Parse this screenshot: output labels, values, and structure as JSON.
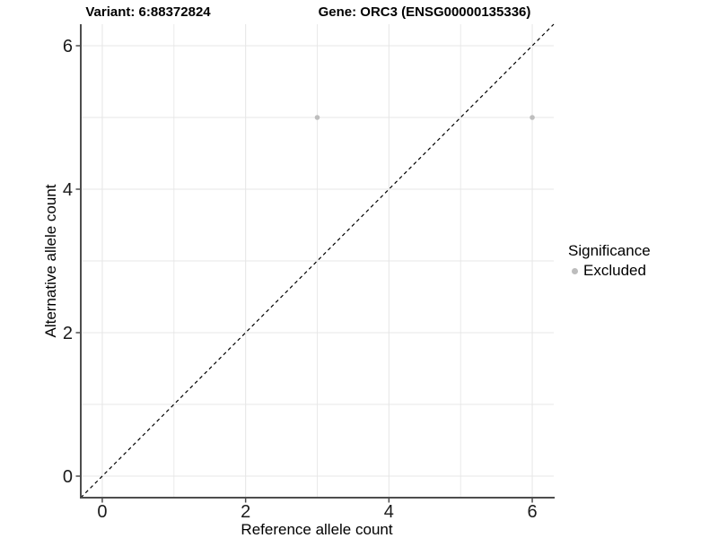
{
  "titles": {
    "variant": "Variant: 6:88372824",
    "gene": "Gene: ORC3 (ENSG00000135336)"
  },
  "chart_data": {
    "type": "scatter",
    "title_left": "Variant: 6:88372824",
    "title_right": "Gene: ORC3 (ENSG00000135336)",
    "xlabel": "Reference allele count",
    "ylabel": "Alternative allele count",
    "xlim": [
      -0.3,
      6.3
    ],
    "ylim": [
      -0.3,
      6.3
    ],
    "xticks": [
      0,
      2,
      4,
      6
    ],
    "yticks": [
      0,
      2,
      4,
      6
    ],
    "grid_major": [
      0,
      2,
      4,
      6
    ],
    "grid_minor": [
      1,
      3,
      5
    ],
    "series": [
      {
        "name": "Excluded",
        "color": "#bebebe",
        "points": [
          {
            "x": 3,
            "y": 5
          },
          {
            "x": 6,
            "y": 5
          }
        ]
      }
    ],
    "reference_line": {
      "slope": 1,
      "intercept": 0,
      "style": "dashed",
      "color": "#000000"
    },
    "legend": {
      "title": "Significance",
      "position": "right",
      "entries": [
        {
          "label": "Excluded",
          "color": "#bdbdbd"
        }
      ]
    },
    "colors": {
      "grid": "#e7e7e7",
      "axis": "#4d4d4d",
      "tick_label": "#1a1a1a",
      "text": "#000000",
      "background": "#ffffff"
    }
  }
}
